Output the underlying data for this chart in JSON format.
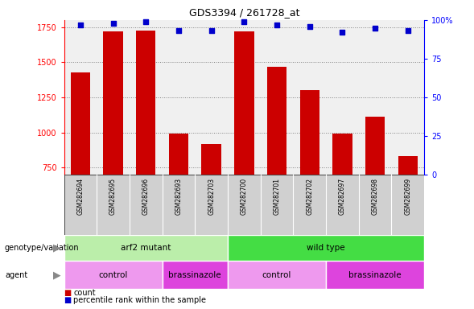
{
  "title": "GDS3394 / 261728_at",
  "samples": [
    "GSM282694",
    "GSM282695",
    "GSM282696",
    "GSM282693",
    "GSM282703",
    "GSM282700",
    "GSM282701",
    "GSM282702",
    "GSM282697",
    "GSM282698",
    "GSM282699"
  ],
  "counts": [
    1430,
    1720,
    1725,
    990,
    920,
    1720,
    1470,
    1300,
    990,
    1110,
    830
  ],
  "percentiles": [
    97,
    98,
    99,
    93,
    93,
    99,
    97,
    96,
    92,
    95,
    93
  ],
  "ylim_left": [
    700,
    1800
  ],
  "ylim_right": [
    0,
    100
  ],
  "yticks_left": [
    750,
    1000,
    1250,
    1500,
    1750
  ],
  "yticks_right": [
    0,
    25,
    50,
    75,
    100
  ],
  "bar_color": "#cc0000",
  "dot_color": "#0000cc",
  "bar_width": 0.6,
  "plot_bg": "#f0f0f0",
  "label_bg": "#d0d0d0",
  "group_info": [
    {
      "label": "arf2 mutant",
      "start": 0,
      "end": 5,
      "color": "#bbeeaa"
    },
    {
      "label": "wild type",
      "start": 5,
      "end": 11,
      "color": "#44dd44"
    }
  ],
  "agent_info": [
    {
      "label": "control",
      "start": 0,
      "end": 3,
      "color": "#ee99ee"
    },
    {
      "label": "brassinazole",
      "start": 3,
      "end": 5,
      "color": "#dd44dd"
    },
    {
      "label": "control",
      "start": 5,
      "end": 8,
      "color": "#ee99ee"
    },
    {
      "label": "brassinazole",
      "start": 8,
      "end": 11,
      "color": "#dd44dd"
    }
  ],
  "legend_count_color": "#cc0000",
  "legend_dot_color": "#0000cc",
  "xlabel_genotype": "genotype/variation",
  "xlabel_agent": "agent"
}
